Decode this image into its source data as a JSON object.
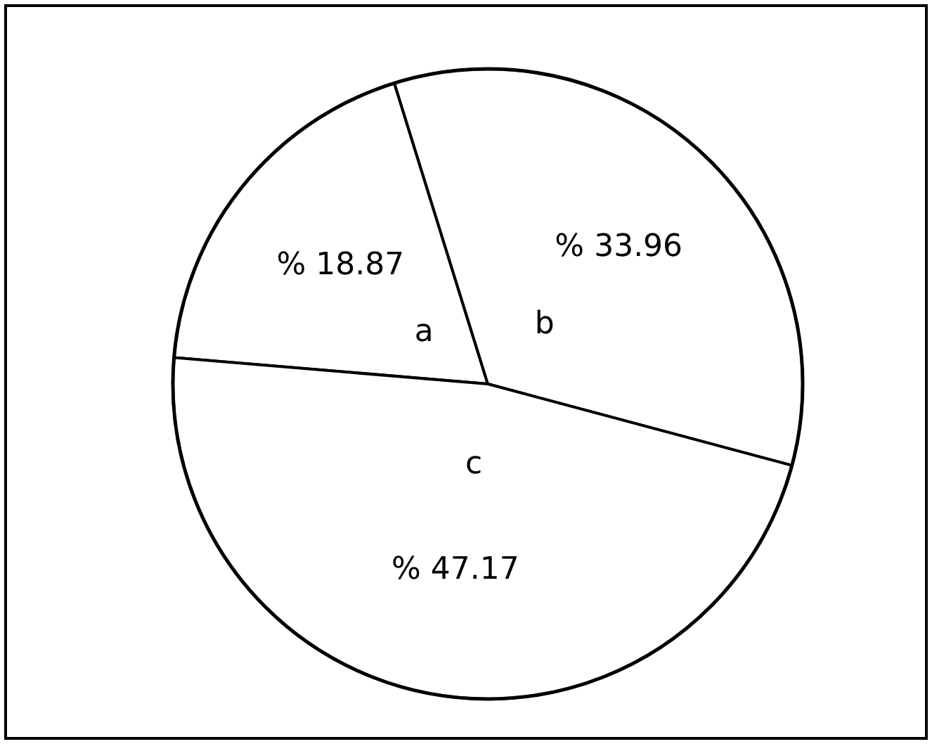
{
  "chart_data": {
    "type": "pie",
    "categories": [
      "a",
      "b",
      "c"
    ],
    "values": [
      18.87,
      33.96,
      47.17
    ],
    "colors": [
      "#ffffff",
      "#ffffff",
      "#ffffff"
    ],
    "value_labels": [
      "% 18.87",
      "% 33.96",
      "% 47.17"
    ]
  }
}
